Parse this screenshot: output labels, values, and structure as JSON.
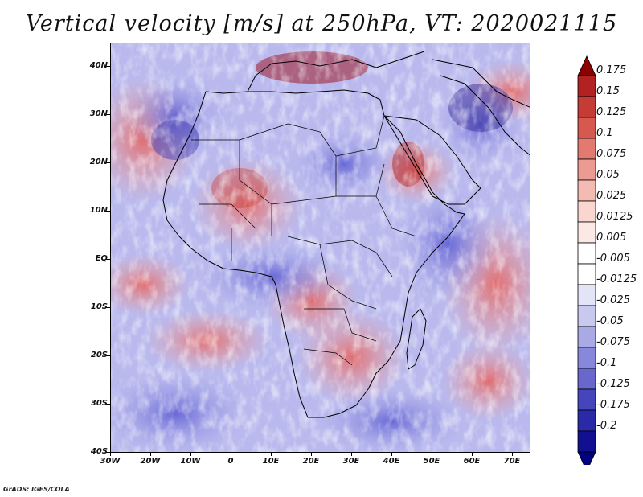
{
  "title": "Vertical velocity [m/s] at 250hPa, VT: 2020021115",
  "credit": "GrADS: IGES/COLA",
  "map": {
    "lat_labels": [
      "40N",
      "30N",
      "20N",
      "10N",
      "EQ",
      "10S",
      "20S",
      "30S",
      "40S"
    ],
    "lon_labels": [
      "30W",
      "20W",
      "10W",
      "0",
      "10E",
      "20E",
      "30E",
      "40E",
      "50E",
      "60E",
      "70E"
    ]
  },
  "colorbar": {
    "labels": [
      "0.175",
      "0.15",
      "0.125",
      "0.1",
      "0.075",
      "0.05",
      "0.025",
      "0.0125",
      "0.005",
      "-0.005",
      "-0.0125",
      "-0.025",
      "-0.05",
      "-0.075",
      "-0.1",
      "-0.125",
      "-0.175",
      "-0.2"
    ],
    "colors": [
      "#b22222",
      "#c53b36",
      "#d6584e",
      "#e27a70",
      "#ec9b92",
      "#f4bbb3",
      "#f9d6d0",
      "#fce9e6",
      "#ffffff",
      "#ffffff",
      "#e4e4f8",
      "#c9c9f0",
      "#a9a9e6",
      "#8888da",
      "#6767cc",
      "#4646bc",
      "#2a2aa8",
      "#101090"
    ],
    "top_arrow_color": "#8b0000",
    "bottom_arrow_color": "#000080"
  }
}
